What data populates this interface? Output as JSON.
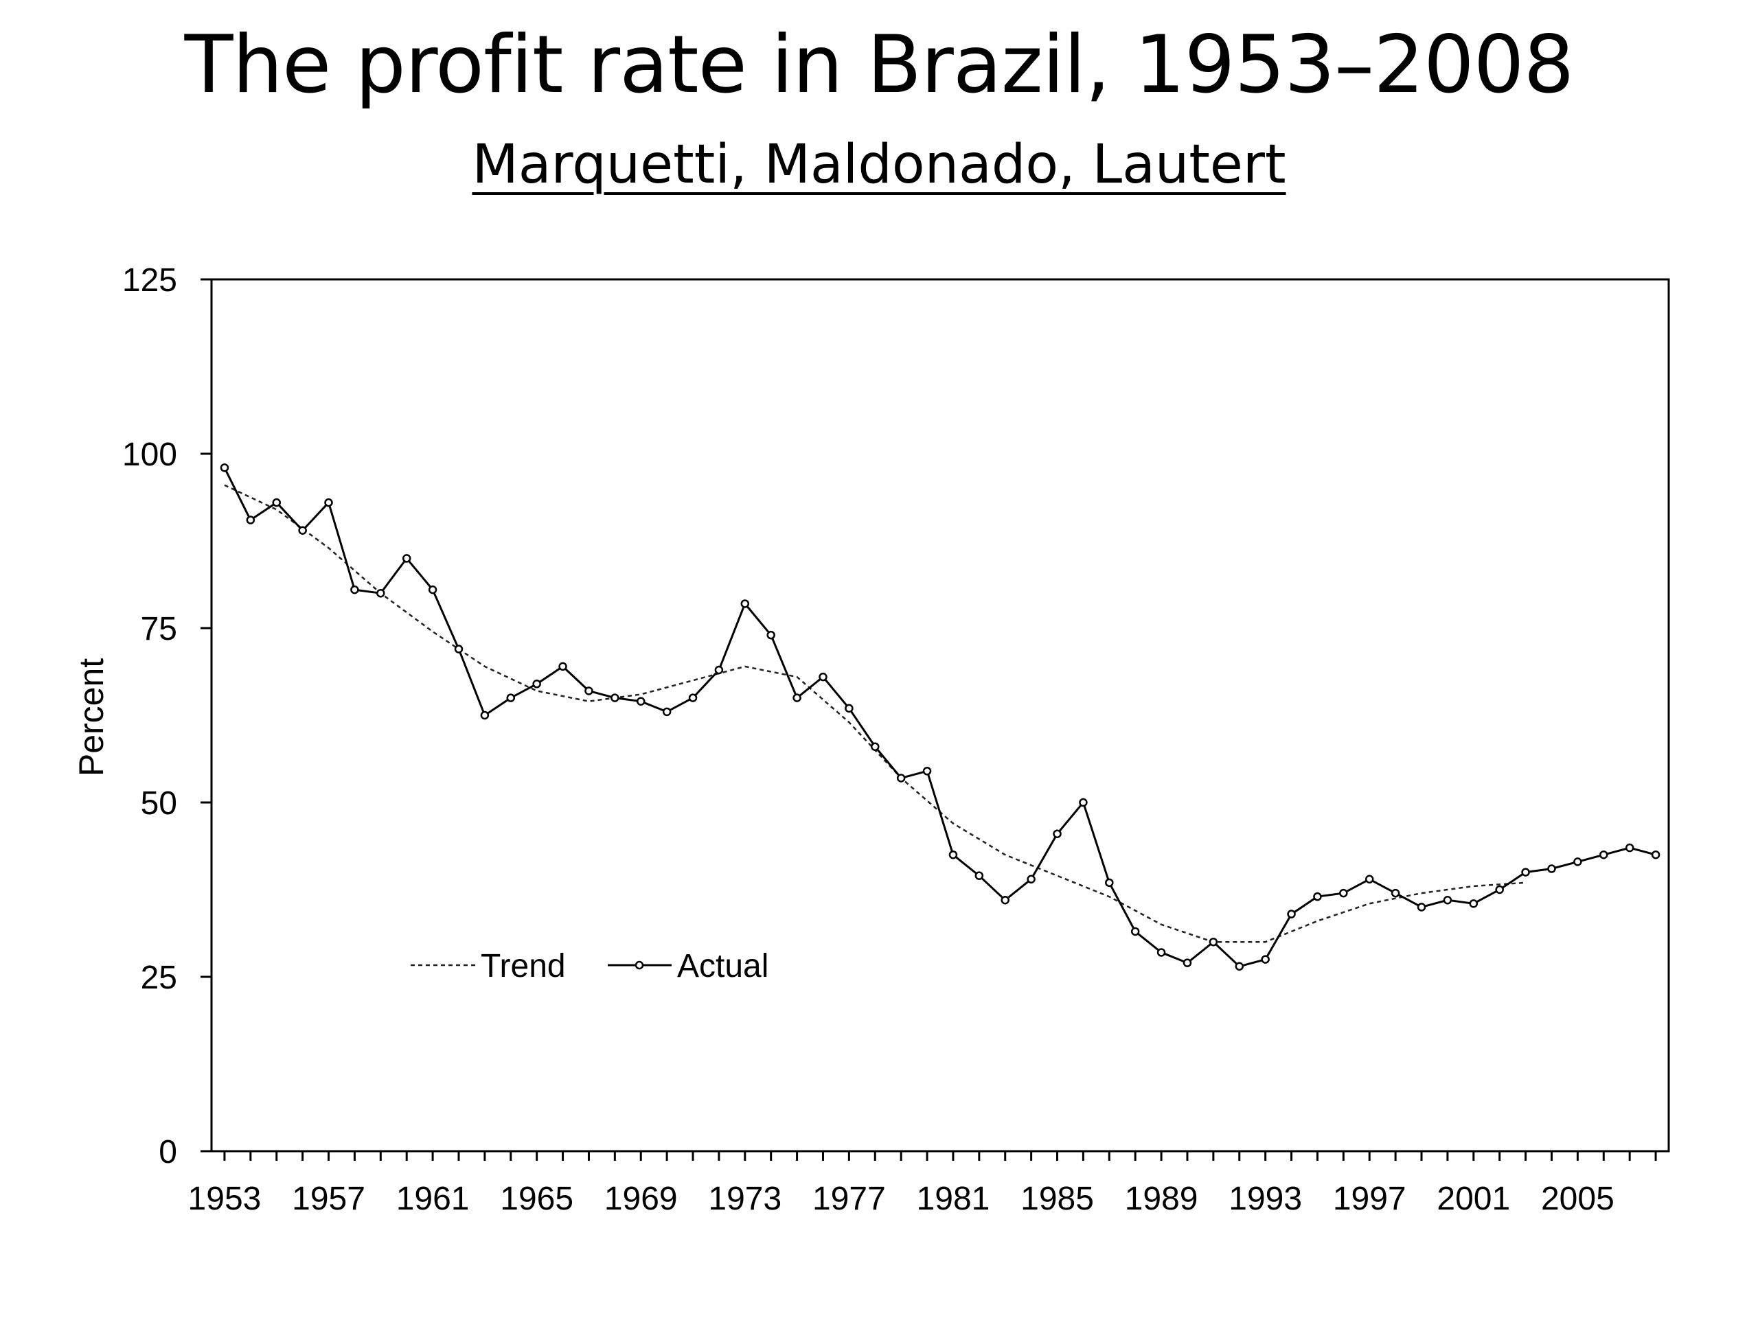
{
  "slide": {
    "title": "The profit rate in Brazil, 1953–2008",
    "subtitle": "Marquetti, Maldonado, Lautert"
  },
  "chart_data": {
    "type": "line",
    "title": "",
    "xlabel": "",
    "ylabel": "Percent",
    "xlim": [
      1952.5,
      2008.5
    ],
    "ylim": [
      0,
      125
    ],
    "xticks": [
      1953,
      1957,
      1961,
      1965,
      1969,
      1973,
      1977,
      1981,
      1985,
      1989,
      1993,
      1997,
      2001,
      2005
    ],
    "yticks": [
      0,
      25,
      50,
      75,
      100,
      125
    ],
    "grid": false,
    "legend": {
      "position": "lower-left",
      "entries": [
        "Trend",
        "Actual"
      ]
    },
    "series": [
      {
        "name": "Actual",
        "style": "solid line with circle markers",
        "x": [
          1953,
          1954,
          1955,
          1956,
          1957,
          1958,
          1959,
          1960,
          1961,
          1962,
          1963,
          1964,
          1965,
          1966,
          1967,
          1968,
          1969,
          1970,
          1971,
          1972,
          1973,
          1974,
          1975,
          1976,
          1977,
          1978,
          1979,
          1980,
          1981,
          1982,
          1983,
          1984,
          1985,
          1986,
          1987,
          1988,
          1989,
          1990,
          1991,
          1992,
          1993,
          1994,
          1995,
          1996,
          1997,
          1998,
          1999,
          2000,
          2001,
          2002,
          2003,
          2004,
          2005,
          2006,
          2007,
          2008
        ],
        "values": [
          98.0,
          90.5,
          93.0,
          89.0,
          93.0,
          80.5,
          80.0,
          85.0,
          80.5,
          72.0,
          62.5,
          65.0,
          67.0,
          69.5,
          66.0,
          65.0,
          64.5,
          63.0,
          65.0,
          69.0,
          78.5,
          74.0,
          65.0,
          68.0,
          63.5,
          58.0,
          53.5,
          54.5,
          42.5,
          39.5,
          36.0,
          39.0,
          45.5,
          50.0,
          38.5,
          31.5,
          28.5,
          27.0,
          30.0,
          26.5,
          27.5,
          34.0,
          36.5,
          37.0,
          39.0,
          37.0,
          35.0,
          36.0,
          35.5,
          37.5,
          40.0,
          40.5,
          41.5,
          42.5,
          43.5,
          42.5
        ]
      },
      {
        "name": "Trend",
        "style": "dashed line",
        "x": [
          1953,
          1955,
          1957,
          1959,
          1961,
          1963,
          1965,
          1967,
          1969,
          1971,
          1973,
          1975,
          1977,
          1979,
          1981,
          1983,
          1985,
          1987,
          1989,
          1991,
          1993,
          1995,
          1997,
          1999,
          2001,
          2003
        ],
        "values": [
          95.5,
          92.0,
          86.5,
          80.0,
          74.5,
          69.5,
          66.0,
          64.5,
          65.5,
          67.5,
          69.5,
          68.0,
          61.5,
          53.5,
          47.0,
          42.5,
          39.5,
          36.5,
          32.5,
          30.0,
          30.0,
          33.0,
          35.5,
          37.0,
          38.0,
          38.5
        ]
      }
    ]
  }
}
